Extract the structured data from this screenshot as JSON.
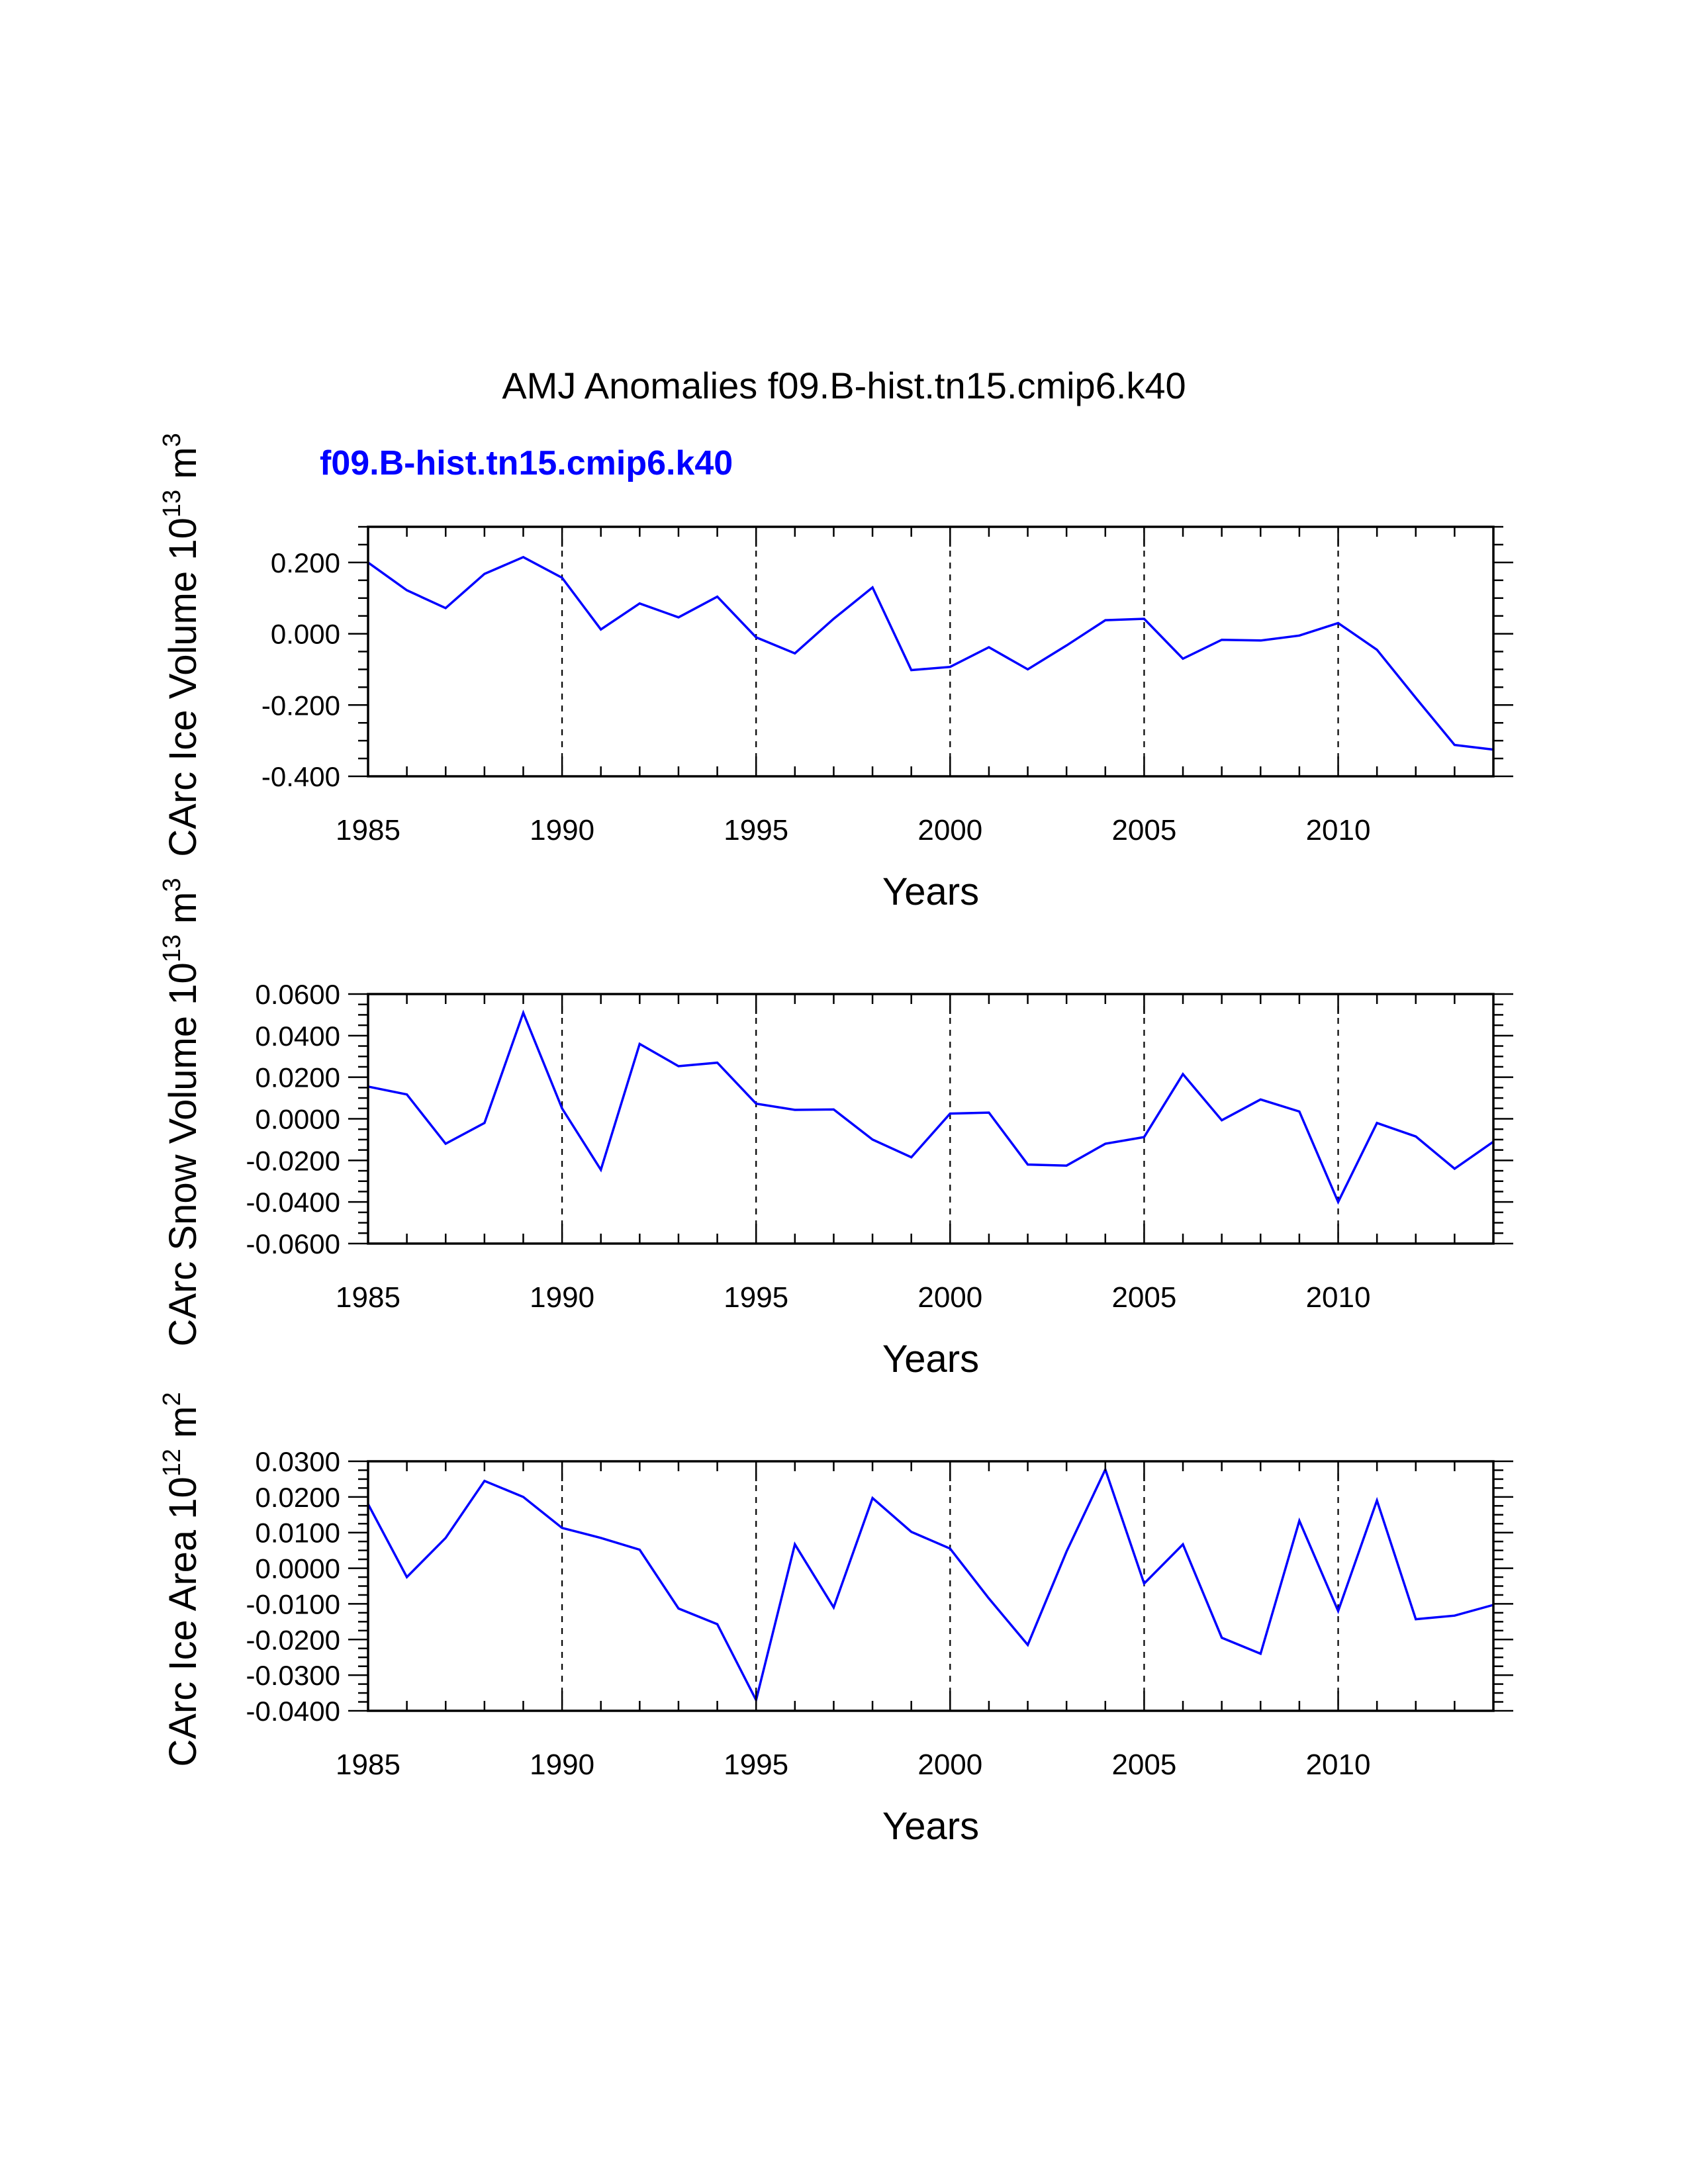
{
  "title": "AMJ Anomalies f09.B-hist.tn15.cmip6.k40",
  "case_label": "f09.B-hist.tn15.cmip6.k40",
  "colors": {
    "series": "#0000ff",
    "text": "#000000",
    "case_label": "#0000ff"
  },
  "chart_data": [
    {
      "type": "line",
      "ylabel": "CArc Ice Volume 10",
      "ylabel_sup1": "13",
      "ylabel_unit": " m",
      "ylabel_sup2": "3",
      "xlabel": "Years",
      "xlim": [
        1985,
        2014
      ],
      "ylim": [
        -0.4,
        0.3
      ],
      "xticks": [
        1985,
        1990,
        1995,
        2000,
        2005,
        2010
      ],
      "xtick_labels": [
        "1985",
        "1990",
        "1995",
        "2000",
        "2005",
        "2010"
      ],
      "yticks": [
        -0.4,
        -0.2,
        0.0,
        0.2
      ],
      "ytick_labels": [
        "-0.400",
        "-0.200",
        "0.000",
        "0.200"
      ],
      "ygrid": false,
      "xgrid_dashed": [
        1990,
        1995,
        2000,
        2005,
        2010
      ],
      "x": [
        1985,
        1986,
        1987,
        1988,
        1989,
        1990,
        1991,
        1992,
        1993,
        1994,
        1995,
        1996,
        1997,
        1998,
        1999,
        2000,
        2001,
        2002,
        2003,
        2004,
        2005,
        2006,
        2007,
        2008,
        2009,
        2010,
        2011,
        2012,
        2013,
        2014
      ],
      "series": [
        {
          "name": "f09.B-hist.tn15.cmip6.k40",
          "values": [
            0.2,
            0.122,
            0.072,
            0.168,
            0.215,
            0.157,
            0.012,
            0.085,
            0.046,
            0.104,
            -0.01,
            -0.055,
            0.042,
            0.13,
            -0.102,
            -0.093,
            -0.038,
            -0.1,
            -0.033,
            0.038,
            0.042,
            -0.07,
            -0.017,
            -0.019,
            -0.005,
            0.03,
            -0.045,
            -0.18,
            -0.312,
            -0.325
          ]
        }
      ]
    },
    {
      "type": "line",
      "ylabel": "CArc Snow Volume 10",
      "ylabel_sup1": "13",
      "ylabel_unit": " m",
      "ylabel_sup2": "3",
      "xlabel": "Years",
      "xlim": [
        1985,
        2014
      ],
      "ylim": [
        -0.06,
        0.06
      ],
      "xticks": [
        1985,
        1990,
        1995,
        2000,
        2005,
        2010
      ],
      "xtick_labels": [
        "1985",
        "1990",
        "1995",
        "2000",
        "2005",
        "2010"
      ],
      "yticks": [
        -0.06,
        -0.04,
        -0.02,
        0.0,
        0.02,
        0.04,
        0.06
      ],
      "ytick_labels": [
        "-0.0600",
        "-0.0400",
        "-0.0200",
        "0.0000",
        "0.0200",
        "0.0400",
        "0.0600"
      ],
      "ygrid": false,
      "xgrid_dashed": [
        1990,
        1995,
        2000,
        2005,
        2010
      ],
      "x": [
        1985,
        1986,
        1987,
        1988,
        1989,
        1990,
        1991,
        1992,
        1993,
        1994,
        1995,
        1996,
        1997,
        1998,
        1999,
        2000,
        2001,
        2002,
        2003,
        2004,
        2005,
        2006,
        2007,
        2008,
        2009,
        2010,
        2011,
        2012,
        2013,
        2014
      ],
      "series": [
        {
          "name": "f09.B-hist.tn15.cmip6.k40",
          "values": [
            0.0155,
            0.0117,
            -0.012,
            -0.002,
            0.051,
            0.005,
            -0.0245,
            0.036,
            0.0253,
            0.027,
            0.0073,
            0.0043,
            0.0045,
            -0.01,
            -0.0185,
            0.0025,
            0.003,
            -0.022,
            -0.0225,
            -0.012,
            -0.0088,
            0.0215,
            -0.0007,
            0.0093,
            0.0035,
            -0.04,
            -0.002,
            -0.0085,
            -0.024,
            -0.011
          ]
        }
      ]
    },
    {
      "type": "line",
      "ylabel": "CArc Ice Area 10",
      "ylabel_sup1": "12",
      "ylabel_unit": " m",
      "ylabel_sup2": "2",
      "xlabel": "Years",
      "xlim": [
        1985,
        2014
      ],
      "ylim": [
        -0.04,
        0.03
      ],
      "xticks": [
        1985,
        1990,
        1995,
        2000,
        2005,
        2010
      ],
      "xtick_labels": [
        "1985",
        "1990",
        "1995",
        "2000",
        "2005",
        "2010"
      ],
      "yticks": [
        -0.04,
        -0.03,
        -0.02,
        -0.01,
        0.0,
        0.01,
        0.02,
        0.03
      ],
      "ytick_labels": [
        "-0.0400",
        "-0.0300",
        "-0.0200",
        "-0.0100",
        "0.0000",
        "0.0100",
        "0.0200",
        "0.0300"
      ],
      "ygrid": false,
      "xgrid_dashed": [
        1990,
        1995,
        2000,
        2005,
        2010
      ],
      "x": [
        1985,
        1986,
        1987,
        1988,
        1989,
        1990,
        1991,
        1992,
        1993,
        1994,
        1995,
        1996,
        1997,
        1998,
        1999,
        2000,
        2001,
        2002,
        2003,
        2004,
        2005,
        2006,
        2007,
        2008,
        2009,
        2010,
        2011,
        2012,
        2013,
        2014
      ],
      "series": [
        {
          "name": "f09.B-hist.tn15.cmip6.k40",
          "values": [
            0.018,
            -0.0025,
            0.0085,
            0.0245,
            0.02,
            0.0113,
            0.0085,
            0.0052,
            -0.0113,
            -0.0157,
            -0.037,
            0.0067,
            -0.011,
            0.0197,
            0.0102,
            0.0055,
            -0.0085,
            -0.0215,
            0.0047,
            0.0277,
            -0.0043,
            0.0067,
            -0.0195,
            -0.024,
            0.0133,
            -0.012,
            0.019,
            -0.0143,
            -0.0133,
            -0.0103
          ]
        }
      ]
    }
  ]
}
